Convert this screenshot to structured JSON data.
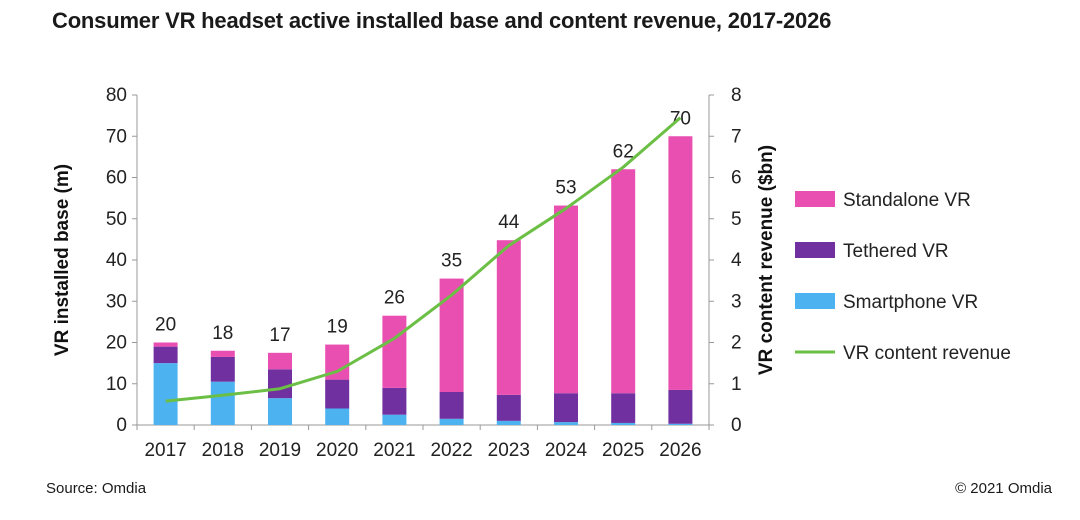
{
  "title": "Consumer VR headset active installed base and content revenue, 2017-2026",
  "source": "Source: Omdia",
  "copyright": "© 2021 Omdia",
  "chart_data": {
    "type": "bar",
    "stacked": true,
    "categories": [
      "2017",
      "2018",
      "2019",
      "2020",
      "2021",
      "2022",
      "2023",
      "2024",
      "2025",
      "2026"
    ],
    "series": [
      {
        "name": "Smartphone VR",
        "color": "#4db3f0",
        "axis": "left",
        "values": [
          15,
          10.5,
          6.5,
          4,
          2.5,
          1.5,
          1,
          0.7,
          0.5,
          0.3
        ]
      },
      {
        "name": "Tethered VR",
        "color": "#7030a0",
        "axis": "left",
        "values": [
          4,
          6,
          7,
          7,
          6.5,
          6.5,
          6.3,
          7,
          7.2,
          8.2
        ]
      },
      {
        "name": "Standalone VR",
        "color": "#e94fb0",
        "axis": "left",
        "values": [
          1,
          1.5,
          4,
          8.5,
          17.5,
          27.5,
          37.5,
          45.5,
          54.3,
          61.5
        ]
      },
      {
        "name": "VR content revenue",
        "type": "line",
        "color": "#6cbf45",
        "axis": "right",
        "values": [
          0.58,
          0.72,
          0.88,
          1.3,
          2.1,
          3.15,
          4.35,
          5.25,
          6.25,
          7.45
        ]
      }
    ],
    "totals": [
      "20",
      "18",
      "17",
      "19",
      "26",
      "35",
      "44",
      "53",
      "62",
      "70"
    ],
    "ylabel": "VR installed base (m)",
    "y2label": "VR content revenue ($bn)",
    "ylim": [
      0,
      80
    ],
    "y2lim": [
      0,
      8
    ],
    "yticks": [
      "0",
      "10",
      "20",
      "30",
      "40",
      "50",
      "60",
      "70",
      "80"
    ],
    "y2ticks": [
      "0",
      "1",
      "2",
      "3",
      "4",
      "5",
      "6",
      "7",
      "8"
    ],
    "legend": {
      "position": "right",
      "order": [
        "Standalone VR",
        "Tethered VR",
        "Smartphone VR",
        "VR content revenue"
      ]
    },
    "grid": false
  }
}
